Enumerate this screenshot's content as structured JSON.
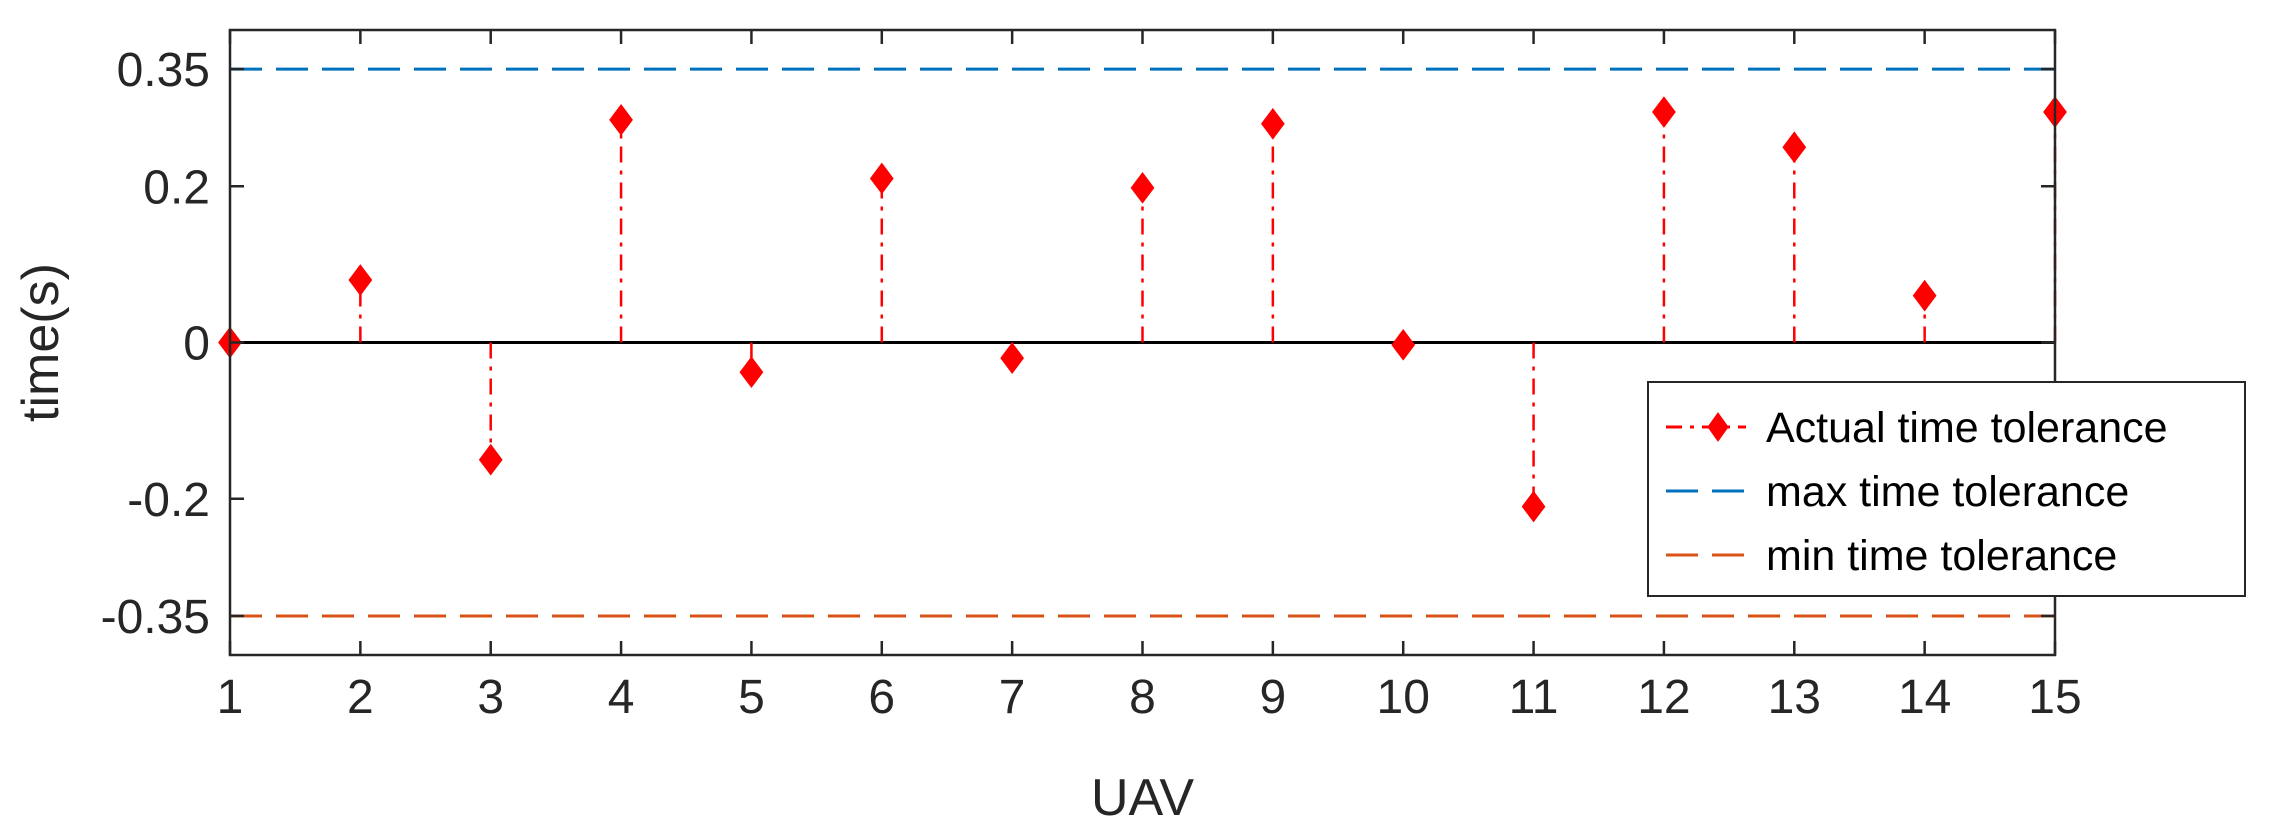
{
  "chart_data": {
    "type": "stem",
    "xlabel": "UAV",
    "ylabel": "time(s)",
    "xlim": [
      1,
      15
    ],
    "ylim": [
      -0.4,
      0.4
    ],
    "xticks": [
      1,
      2,
      3,
      4,
      5,
      6,
      7,
      8,
      9,
      10,
      11,
      12,
      13,
      14,
      15
    ],
    "xtick_labels": [
      "1",
      "2",
      "3",
      "4",
      "5",
      "6",
      "7",
      "8",
      "9",
      "10",
      "11",
      "12",
      "13",
      "14",
      "15"
    ],
    "yticks": [
      -0.35,
      -0.2,
      0,
      0.2,
      0.35
    ],
    "ytick_labels": [
      "-0.35",
      "-0.2",
      "0",
      "0.2",
      "0.35"
    ],
    "grid": false,
    "legend_position": "right",
    "series": [
      {
        "name": "Actual time tolerance",
        "style": "stem",
        "marker": "diamond",
        "line_style": "dash-dot",
        "color": "#ff0000",
        "x": [
          1,
          2,
          3,
          4,
          5,
          6,
          7,
          8,
          9,
          10,
          11,
          12,
          13,
          14,
          15
        ],
        "values": [
          0.0,
          0.08,
          -0.15,
          0.285,
          -0.038,
          0.21,
          -0.02,
          0.198,
          0.28,
          -0.003,
          -0.21,
          0.295,
          0.25,
          0.06,
          0.295
        ]
      },
      {
        "name": "max time tolerance",
        "style": "hline",
        "line_style": "dashed",
        "color": "#0072bd",
        "value": 0.35
      },
      {
        "name": "min time tolerance",
        "style": "hline",
        "line_style": "dashed",
        "color": "#d95319",
        "value": -0.35
      }
    ]
  }
}
